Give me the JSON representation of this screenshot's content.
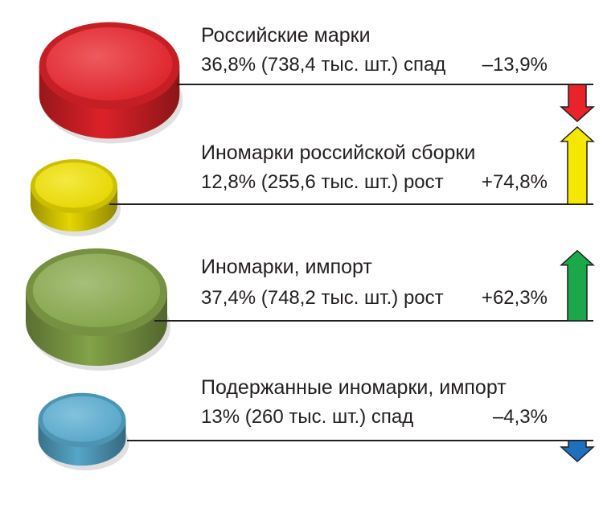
{
  "chart_data": {
    "type": "table",
    "title": "",
    "unit_count": "тыс. шт.",
    "rows": [
      {
        "name": "Российские марки",
        "share_percent": 36.8,
        "share_label": "36,8%",
        "count_label": "(738,4 тыс. шт.)",
        "count_thousand": 738.4,
        "trend": "спад",
        "change_percent": -13.9,
        "change_label": "–13,9%",
        "color": "#e8232a"
      },
      {
        "name": "Иномарки российской сборки",
        "share_percent": 12.8,
        "share_label": "12,8%",
        "count_label": "(255,6 тыс. шт.)",
        "count_thousand": 255.6,
        "trend": "рост",
        "change_percent": 74.8,
        "change_label": "+74,8%",
        "color": "#f0e100"
      },
      {
        "name": "Иномарки, импорт",
        "share_percent": 37.4,
        "share_label": "37,4%",
        "count_label": "(748,2 тыс. шт.)",
        "count_thousand": 748.2,
        "trend": "рост",
        "change_percent": 62.3,
        "change_label": "+62,3%",
        "color": "#8aaa4c"
      },
      {
        "name": "Подержанные иномарки, импорт",
        "share_percent": 13,
        "share_label": "13%",
        "count_label": "(260 тыс. шт.)",
        "count_thousand": 260,
        "trend": "спад",
        "change_percent": -4.3,
        "change_label": "–4,3%",
        "color": "#5aaed3"
      }
    ],
    "arrow_colors": [
      "#e8232a",
      "#f4e800",
      "#1aa84a",
      "#1f6fbf"
    ]
  }
}
